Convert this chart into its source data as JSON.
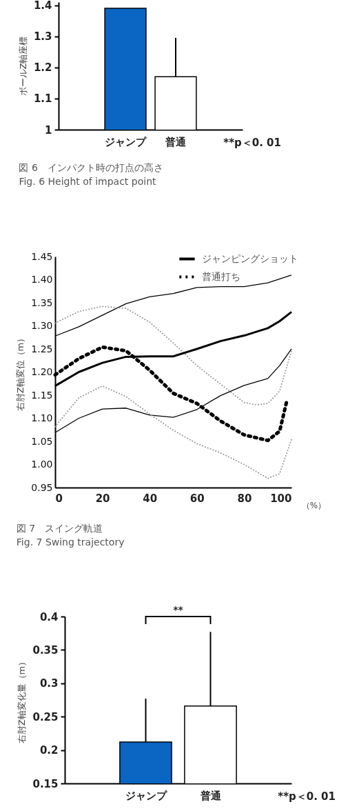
{
  "chart_data": [
    {
      "type": "bar",
      "title": "図 6　インパクト時の打点の高さ",
      "subtitle": "Fig. 6 Height of impact point",
      "ylabel": "ボールZ軸座標",
      "categories": [
        "ジャンプ",
        "普通"
      ],
      "values": [
        1.39,
        1.17
      ],
      "colors": [
        "#0a66c2",
        "#ffffff"
      ],
      "errors": [
        null,
        [
          1.17,
          1.295
        ]
      ],
      "ylim": [
        1,
        1.41
      ],
      "yticks": [
        1,
        1.1,
        1.2,
        1.3,
        1.4
      ],
      "annotations": [
        "**p＜0. 01"
      ]
    },
    {
      "type": "line",
      "title": "図 7　スイング軌道",
      "subtitle": "Fig. 7 Swing trajectory",
      "xlabel": "（%）",
      "ylabel": "右肘Z軸変位（m）",
      "legend": "top right",
      "xlim": [
        0,
        100
      ],
      "xticks": [
        0,
        20,
        40,
        60,
        80,
        100
      ],
      "ylim": [
        0.95,
        1.45
      ],
      "yticks": [
        {
          "value": 0.95,
          "label": "0.95"
        },
        {
          "value": 1,
          "label": "1.00"
        },
        {
          "value": 1.05,
          "label": "1.05"
        },
        {
          "value": 1.1,
          "label": "1.10"
        },
        {
          "value": 1.15,
          "label": "1.15"
        },
        {
          "value": 1.2,
          "label": "1.20"
        },
        {
          "value": 1.25,
          "label": "1.25"
        },
        {
          "value": 1.3,
          "label": "1.30"
        },
        {
          "value": 1.35,
          "label": "1.35"
        },
        {
          "value": 1.4,
          "label": "1.40"
        },
        {
          "value": 1.45,
          "label": "1.45"
        }
      ],
      "series": [
        {
          "color": "#000000",
          "line_style": "solid",
          "x": [
            0,
            10,
            20,
            30,
            40,
            50,
            60,
            70,
            80,
            90,
            100
          ],
          "values": [
            1.278,
            1.298,
            1.323,
            1.348,
            1.363,
            1.37,
            1.383,
            1.385,
            1.385,
            1.393,
            1.41
          ]
        },
        {
          "color": "#000000",
          "line_style": "solid",
          "x": [
            0,
            10,
            20,
            30,
            40,
            50,
            60,
            70,
            80,
            90,
            95,
            100
          ],
          "values": [
            1.069,
            1.1,
            1.12,
            1.122,
            1.107,
            1.102,
            1.119,
            1.149,
            1.171,
            1.186,
            1.214,
            1.25
          ]
        },
        {
          "color": "#999999",
          "line_style": "dotted",
          "x": [
            0,
            10,
            20,
            30,
            40,
            50,
            60,
            70,
            80,
            85,
            90,
            95,
            100
          ],
          "values": [
            1.306,
            1.331,
            1.342,
            1.338,
            1.308,
            1.263,
            1.214,
            1.174,
            1.134,
            1.129,
            1.132,
            1.159,
            1.246
          ]
        },
        {
          "color": "#999999",
          "line_style": "dotted",
          "x": [
            0,
            10,
            20,
            30,
            40,
            50,
            60,
            70,
            80,
            90,
            95,
            100
          ],
          "values": [
            1.082,
            1.144,
            1.17,
            1.147,
            1.109,
            1.074,
            1.045,
            1.025,
            1,
            0.97,
            0.98,
            1.054
          ]
        },
        {
          "name": "ジャンピングショット",
          "color": "#000000",
          "line_style": "solid",
          "x": [
            0,
            10,
            20,
            30,
            40,
            50,
            60,
            70,
            80,
            90,
            95,
            100
          ],
          "values": [
            1.17,
            1.2,
            1.22,
            1.233,
            1.234,
            1.234,
            1.25,
            1.267,
            1.279,
            1.295,
            1.31,
            1.33
          ]
        },
        {
          "name": "普通打ち",
          "color": "#000000",
          "line_style": "dotted",
          "x": [
            0,
            10,
            20,
            30,
            40,
            50,
            60,
            70,
            80,
            90,
            95,
            98
          ],
          "values": [
            1.194,
            1.229,
            1.254,
            1.246,
            1.204,
            1.154,
            1.132,
            1.094,
            1.064,
            1.052,
            1.072,
            1.137
          ]
        }
      ]
    },
    {
      "type": "bar",
      "ylabel": "右肘Z軸変化量（m）",
      "categories": [
        "ジャンプ",
        "普通"
      ],
      "values": [
        0.212,
        0.266
      ],
      "colors": [
        "#0a66c2",
        "#ffffff"
      ],
      "errors": [
        [
          0.212,
          0.277
        ],
        [
          0.266,
          0.377
        ]
      ],
      "ylim": [
        0.15,
        0.4
      ],
      "yticks": [
        0.15,
        0.2,
        0.25,
        0.3,
        0.35,
        0.4
      ],
      "annotations": [
        "**",
        "**p＜0. 01"
      ]
    }
  ]
}
